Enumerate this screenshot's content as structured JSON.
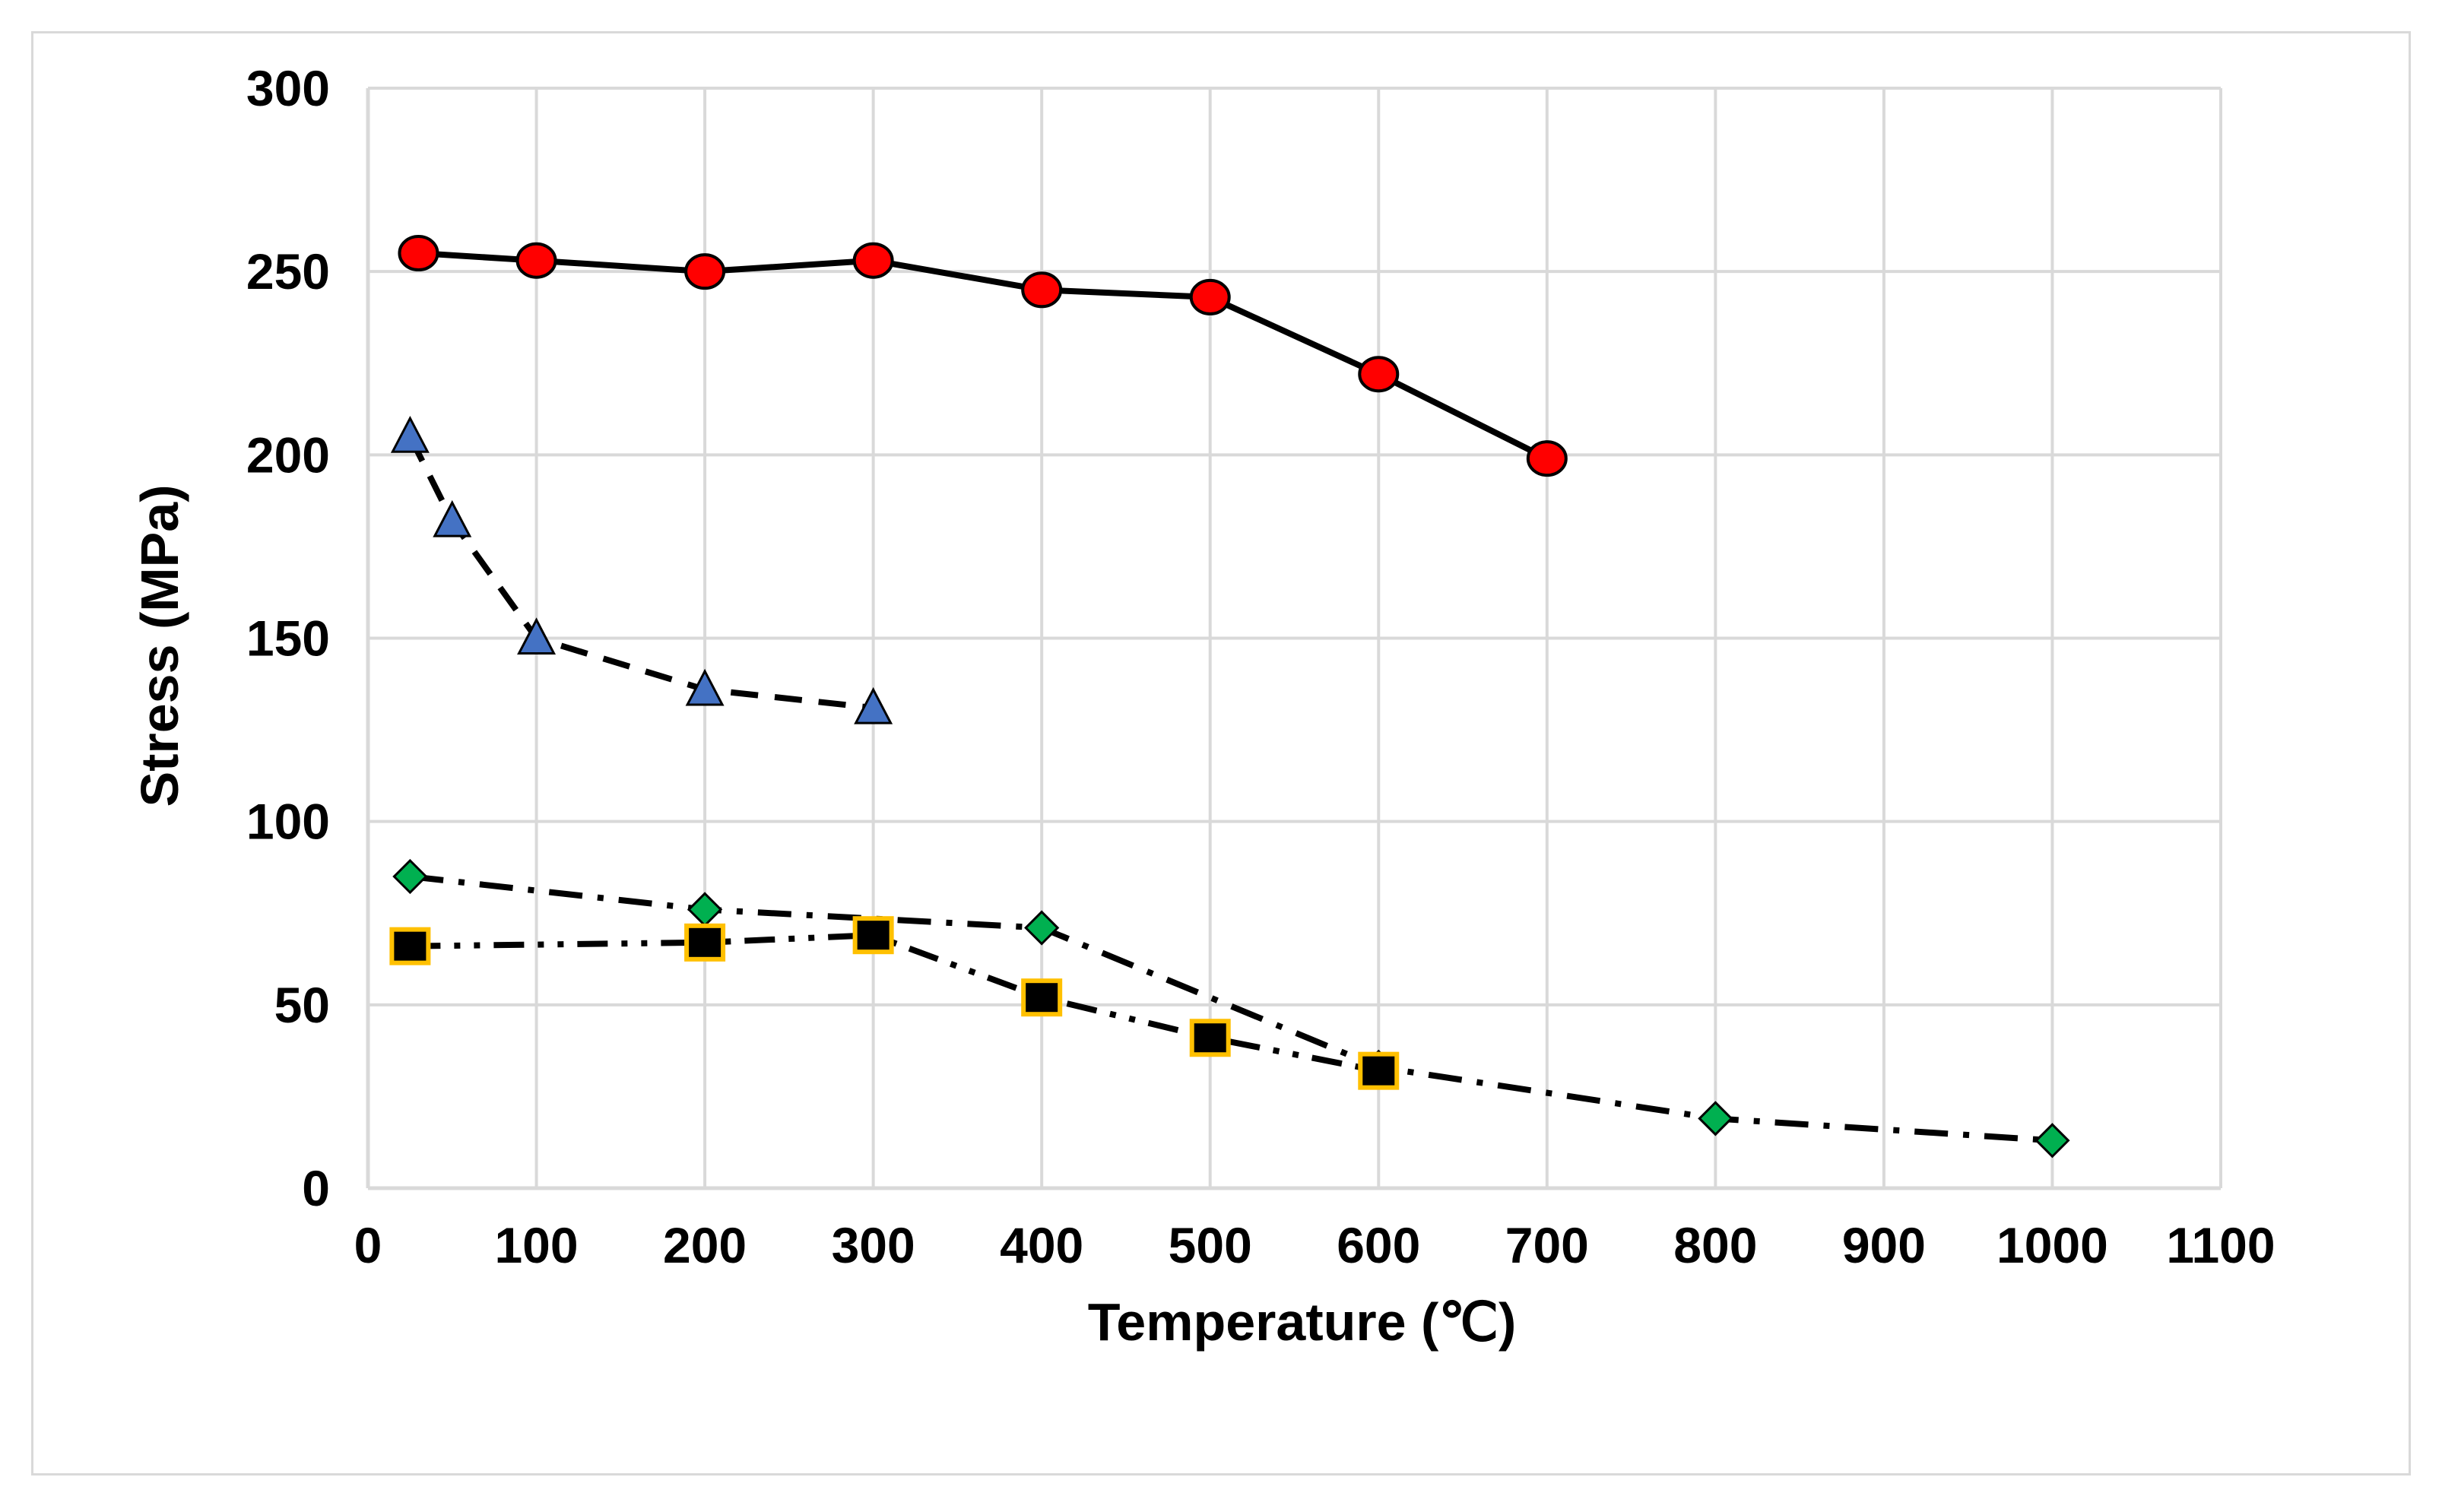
{
  "chart_data": {
    "type": "line",
    "title": "",
    "xlabel": "Temperature (℃)",
    "ylabel": "Stress (MPa)",
    "xlim": [
      0,
      1100
    ],
    "ylim": [
      0,
      300
    ],
    "xticks": [
      0,
      100,
      200,
      300,
      400,
      500,
      600,
      700,
      800,
      900,
      1000,
      1100
    ],
    "yticks": [
      0,
      50,
      100,
      150,
      200,
      250,
      300
    ],
    "grid": true,
    "legend": "none",
    "series": [
      {
        "name": "red-circles",
        "marker": "circle",
        "line": "solid",
        "color": "#ff0000",
        "x": [
          30,
          100,
          200,
          300,
          400,
          500,
          600,
          700
        ],
        "y": [
          255,
          253,
          250,
          253,
          245,
          243,
          222,
          199
        ]
      },
      {
        "name": "blue-triangles",
        "marker": "triangle",
        "line": "dashed",
        "color": "#4472c4",
        "x": [
          25,
          50,
          100,
          200,
          300
        ],
        "y": [
          205,
          182,
          150,
          136,
          131
        ]
      },
      {
        "name": "green-diamonds",
        "marker": "diamond",
        "line": "dash-dot",
        "color": "#00b050",
        "x": [
          25,
          200,
          400,
          600,
          800,
          1000
        ],
        "y": [
          85,
          76,
          71,
          33,
          19,
          13
        ]
      },
      {
        "name": "black-squares",
        "marker": "square",
        "line": "dash-dot-dot",
        "color": "#000000",
        "edge": "#ffc000",
        "x": [
          25,
          200,
          300,
          400,
          500,
          600
        ],
        "y": [
          66,
          67,
          69,
          52,
          41,
          32
        ]
      }
    ]
  }
}
